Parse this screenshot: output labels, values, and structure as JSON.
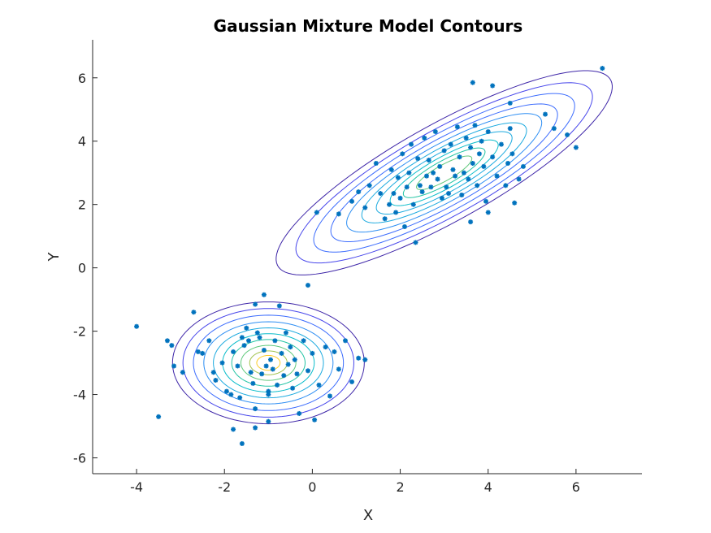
{
  "chart_data": {
    "type": "scatter",
    "title": "Gaussian Mixture Model Contours",
    "xlabel": "X",
    "ylabel": "Y",
    "xlim": [
      -5,
      7.5
    ],
    "ylim": [
      -6.5,
      7.2
    ],
    "xticks": [
      -4,
      -2,
      0,
      2,
      4,
      6
    ],
    "yticks": [
      -6,
      -4,
      -2,
      0,
      2,
      4,
      6
    ],
    "grid": false,
    "marker_color": "#0072BD",
    "contour_colormap": [
      "#3E26A8",
      "#4746EB",
      "#3C6CFD",
      "#2D8EF3",
      "#1CAADF",
      "#09BCCA",
      "#23C4A4",
      "#60C97C",
      "#A3C34F",
      "#DFB52F",
      "#FBCD27"
    ],
    "components": [
      {
        "mean": [
          -1.0,
          -3.0
        ],
        "cov": [
          [
            0.9,
            0.0
          ],
          [
            0.0,
            0.7
          ]
        ],
        "contour_levels_sigma": [
          2.3,
          2.05,
          1.8,
          1.55,
          1.32,
          1.1,
          0.88,
          0.66,
          0.45,
          0.28
        ],
        "contour_color_index": [
          0,
          1,
          2,
          3,
          4,
          5,
          6,
          7,
          8,
          10
        ]
      },
      {
        "mean": [
          3.0,
          3.0
        ],
        "cov": [
          [
            2.25,
            1.6
          ],
          [
            1.6,
            1.6
          ]
        ],
        "contour_levels_sigma": [
          2.55,
          2.25,
          1.98,
          1.72,
          1.48,
          1.25,
          1.03,
          0.82,
          0.62,
          0.42
        ],
        "contour_color_index": [
          0,
          1,
          2,
          2,
          3,
          4,
          4,
          5,
          6,
          7
        ]
      }
    ],
    "points": [
      [
        -4.0,
        -1.85
      ],
      [
        -3.5,
        -4.7
      ],
      [
        -3.3,
        -2.3
      ],
      [
        -3.2,
        -2.45
      ],
      [
        -3.15,
        -3.1
      ],
      [
        -2.95,
        -3.3
      ],
      [
        -2.7,
        -1.4
      ],
      [
        -2.6,
        -2.65
      ],
      [
        -2.5,
        -2.7
      ],
      [
        -2.35,
        -2.3
      ],
      [
        -2.25,
        -3.3
      ],
      [
        -2.2,
        -3.55
      ],
      [
        -2.05,
        -3.0
      ],
      [
        -1.95,
        -3.9
      ],
      [
        -1.85,
        -4.0
      ],
      [
        -1.8,
        -2.65
      ],
      [
        -1.7,
        -3.1
      ],
      [
        -1.65,
        -4.1
      ],
      [
        -1.6,
        -2.2
      ],
      [
        -1.55,
        -2.45
      ],
      [
        -1.5,
        -1.9
      ],
      [
        -1.45,
        -2.3
      ],
      [
        -1.4,
        -3.3
      ],
      [
        -1.35,
        -3.65
      ],
      [
        -1.3,
        -1.15
      ],
      [
        -1.3,
        -4.45
      ],
      [
        -1.25,
        -2.05
      ],
      [
        -1.2,
        -2.2
      ],
      [
        -1.15,
        -3.35
      ],
      [
        -1.1,
        -2.6
      ],
      [
        -1.05,
        -3.1
      ],
      [
        -1.0,
        -3.9
      ],
      [
        -1.0,
        -4.0
      ],
      [
        -0.95,
        -2.9
      ],
      [
        -0.9,
        -3.2
      ],
      [
        -0.85,
        -2.3
      ],
      [
        -0.8,
        -3.7
      ],
      [
        -0.75,
        -1.2
      ],
      [
        -0.7,
        -2.7
      ],
      [
        -0.65,
        -3.4
      ],
      [
        -0.6,
        -2.05
      ],
      [
        -0.55,
        -3.05
      ],
      [
        -0.5,
        -2.5
      ],
      [
        -0.45,
        -3.8
      ],
      [
        -0.4,
        -2.9
      ],
      [
        -0.35,
        -3.35
      ],
      [
        -0.3,
        -4.6
      ],
      [
        -0.2,
        -2.3
      ],
      [
        -0.1,
        -3.25
      ],
      [
        0.0,
        -2.7
      ],
      [
        0.05,
        -4.8
      ],
      [
        0.15,
        -3.7
      ],
      [
        0.3,
        -2.5
      ],
      [
        0.4,
        -4.05
      ],
      [
        0.5,
        -2.65
      ],
      [
        0.6,
        -3.2
      ],
      [
        0.75,
        -2.3
      ],
      [
        0.9,
        -3.6
      ],
      [
        1.05,
        -2.85
      ],
      [
        1.2,
        -2.9
      ],
      [
        -1.8,
        -5.1
      ],
      [
        -1.6,
        -5.55
      ],
      [
        -1.3,
        -5.05
      ],
      [
        -1.0,
        -4.85
      ],
      [
        -1.1,
        -0.85
      ],
      [
        -0.1,
        -0.55
      ],
      [
        0.1,
        1.75
      ],
      [
        0.6,
        1.7
      ],
      [
        0.9,
        2.1
      ],
      [
        1.05,
        2.4
      ],
      [
        1.2,
        1.9
      ],
      [
        1.3,
        2.6
      ],
      [
        1.45,
        3.3
      ],
      [
        1.55,
        2.35
      ],
      [
        1.65,
        1.55
      ],
      [
        1.75,
        2.0
      ],
      [
        1.8,
        3.1
      ],
      [
        1.85,
        2.35
      ],
      [
        1.9,
        1.75
      ],
      [
        1.95,
        2.85
      ],
      [
        2.0,
        2.2
      ],
      [
        2.05,
        3.6
      ],
      [
        2.1,
        1.3
      ],
      [
        2.15,
        2.55
      ],
      [
        2.2,
        3.0
      ],
      [
        2.25,
        3.9
      ],
      [
        2.3,
        2.0
      ],
      [
        2.35,
        0.8
      ],
      [
        2.4,
        3.45
      ],
      [
        2.45,
        2.6
      ],
      [
        2.5,
        2.4
      ],
      [
        2.55,
        4.1
      ],
      [
        2.6,
        2.9
      ],
      [
        2.65,
        3.4
      ],
      [
        2.7,
        2.55
      ],
      [
        2.75,
        3.0
      ],
      [
        2.8,
        4.3
      ],
      [
        2.85,
        2.8
      ],
      [
        2.9,
        3.2
      ],
      [
        2.95,
        2.2
      ],
      [
        3.0,
        3.7
      ],
      [
        3.05,
        2.55
      ],
      [
        3.1,
        2.35
      ],
      [
        3.15,
        3.9
      ],
      [
        3.2,
        3.1
      ],
      [
        3.25,
        2.9
      ],
      [
        3.3,
        4.45
      ],
      [
        3.35,
        3.5
      ],
      [
        3.4,
        2.3
      ],
      [
        3.45,
        3.0
      ],
      [
        3.5,
        4.1
      ],
      [
        3.55,
        2.8
      ],
      [
        3.6,
        3.8
      ],
      [
        3.65,
        3.3
      ],
      [
        3.7,
        4.5
      ],
      [
        3.75,
        2.6
      ],
      [
        3.8,
        3.6
      ],
      [
        3.85,
        4.0
      ],
      [
        3.9,
        3.2
      ],
      [
        3.95,
        2.1
      ],
      [
        4.0,
        4.3
      ],
      [
        4.1,
        3.5
      ],
      [
        4.2,
        2.9
      ],
      [
        4.3,
        3.9
      ],
      [
        4.4,
        2.6
      ],
      [
        4.45,
        3.3
      ],
      [
        4.5,
        4.4
      ],
      [
        4.55,
        3.6
      ],
      [
        4.6,
        2.05
      ],
      [
        4.7,
        2.8
      ],
      [
        4.8,
        3.2
      ],
      [
        5.3,
        4.85
      ],
      [
        5.5,
        4.4
      ],
      [
        5.8,
        4.2
      ],
      [
        6.0,
        3.8
      ],
      [
        3.65,
        5.85
      ],
      [
        4.1,
        5.75
      ],
      [
        6.6,
        6.3
      ],
      [
        4.5,
        5.2
      ],
      [
        4.0,
        1.75
      ],
      [
        3.6,
        1.45
      ]
    ]
  }
}
